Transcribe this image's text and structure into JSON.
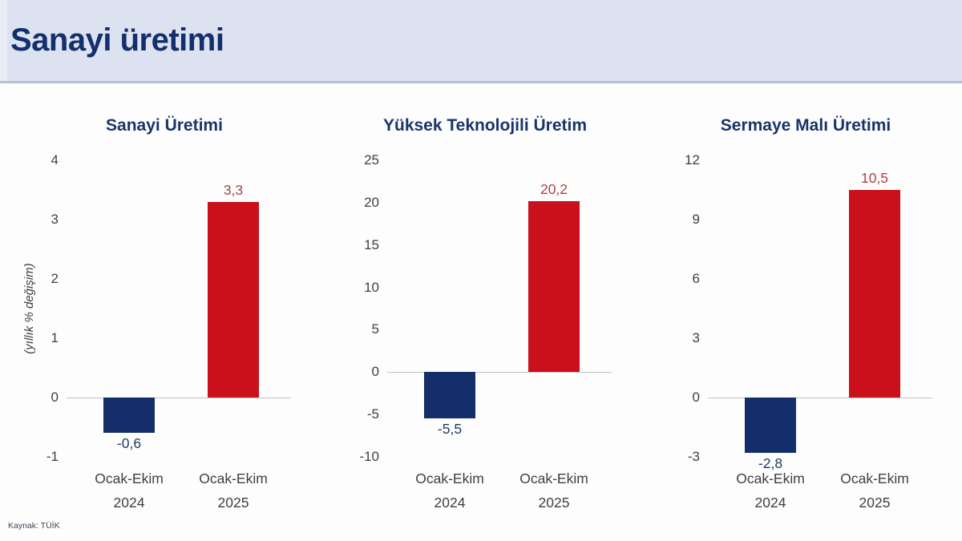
{
  "header": {
    "title": "Sanayi üretimi"
  },
  "source_note": "Kaynak: TÜİK",
  "colors": {
    "header_bg": "#dce2ef",
    "header_text": "#132f6d",
    "chart_title_text": "#17356b",
    "positive_bar": "#c9101b",
    "negative_bar": "#132e6b",
    "positive_label": "#b04240",
    "negative_label": "#1f3a68",
    "axis_line": "#c2c2c2"
  },
  "chart_data": [
    {
      "type": "bar",
      "title": "Sanayi Üretimi",
      "ylabel": "(yıllık % değişim)",
      "categories": [
        [
          "Ocak-Ekim",
          "2024"
        ],
        [
          "Ocak-Ekim",
          "2025"
        ]
      ],
      "values": [
        -0.6,
        3.3
      ],
      "value_labels": [
        "-0,6",
        "3,3"
      ],
      "yticks": [
        4,
        3,
        2,
        1,
        0,
        -1
      ],
      "ylim": [
        -1,
        4
      ],
      "grid": false,
      "legend": null
    },
    {
      "type": "bar",
      "title": "Yüksek Teknolojili Üretim",
      "ylabel": "",
      "categories": [
        [
          "Ocak-Ekim",
          "2024"
        ],
        [
          "Ocak-Ekim",
          "2025"
        ]
      ],
      "values": [
        -5.5,
        20.2
      ],
      "value_labels": [
        "-5,5",
        "20,2"
      ],
      "yticks": [
        25,
        20,
        15,
        10,
        5,
        0,
        -5,
        -10
      ],
      "ylim": [
        -10,
        25
      ],
      "grid": false,
      "legend": null
    },
    {
      "type": "bar",
      "title": "Sermaye Malı Üretimi",
      "ylabel": "",
      "categories": [
        [
          "Ocak-Ekim",
          "2024"
        ],
        [
          "Ocak-Ekim",
          "2025"
        ]
      ],
      "values": [
        -2.8,
        10.5
      ],
      "value_labels": [
        "-2,8",
        "10,5"
      ],
      "yticks": [
        12,
        9,
        6,
        3,
        0,
        -3
      ],
      "ylim": [
        -3,
        12
      ],
      "grid": false,
      "legend": null
    }
  ]
}
